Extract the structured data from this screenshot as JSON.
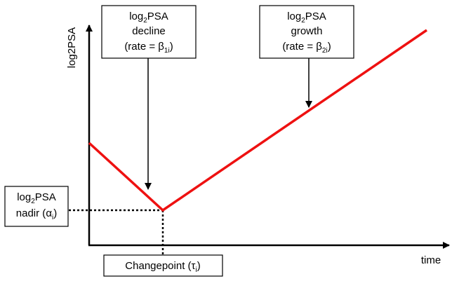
{
  "axes": {
    "y_label": "log2PSA",
    "x_label": "time"
  },
  "boxes": {
    "decline": {
      "line1_main": "log",
      "line1_sub": "2",
      "line1_rest": "PSA",
      "line2": "decline",
      "line3_prefix": "(rate = ",
      "line3_symbol": "β",
      "line3_sub": "1i",
      "line3_suffix": ")"
    },
    "growth": {
      "line1_main": "log",
      "line1_sub": "2",
      "line1_rest": "PSA",
      "line2": "growth",
      "line3_prefix": "(rate = ",
      "line3_symbol": "β",
      "line3_sub": "2i",
      "line3_suffix": ")"
    },
    "nadir": {
      "line1_main": "log",
      "line1_sub": "2",
      "line1_rest": "PSA",
      "line2_prefix": "nadir (",
      "line2_symbol": "α",
      "line2_sub": "i",
      "line2_suffix": ")"
    },
    "changepoint": {
      "prefix": "Changepoint (",
      "symbol": "τ",
      "sub": "i",
      "suffix": ")"
    }
  },
  "colors": {
    "trajectory": "#ee1111",
    "axis": "#000000",
    "box_border": "#000000"
  }
}
